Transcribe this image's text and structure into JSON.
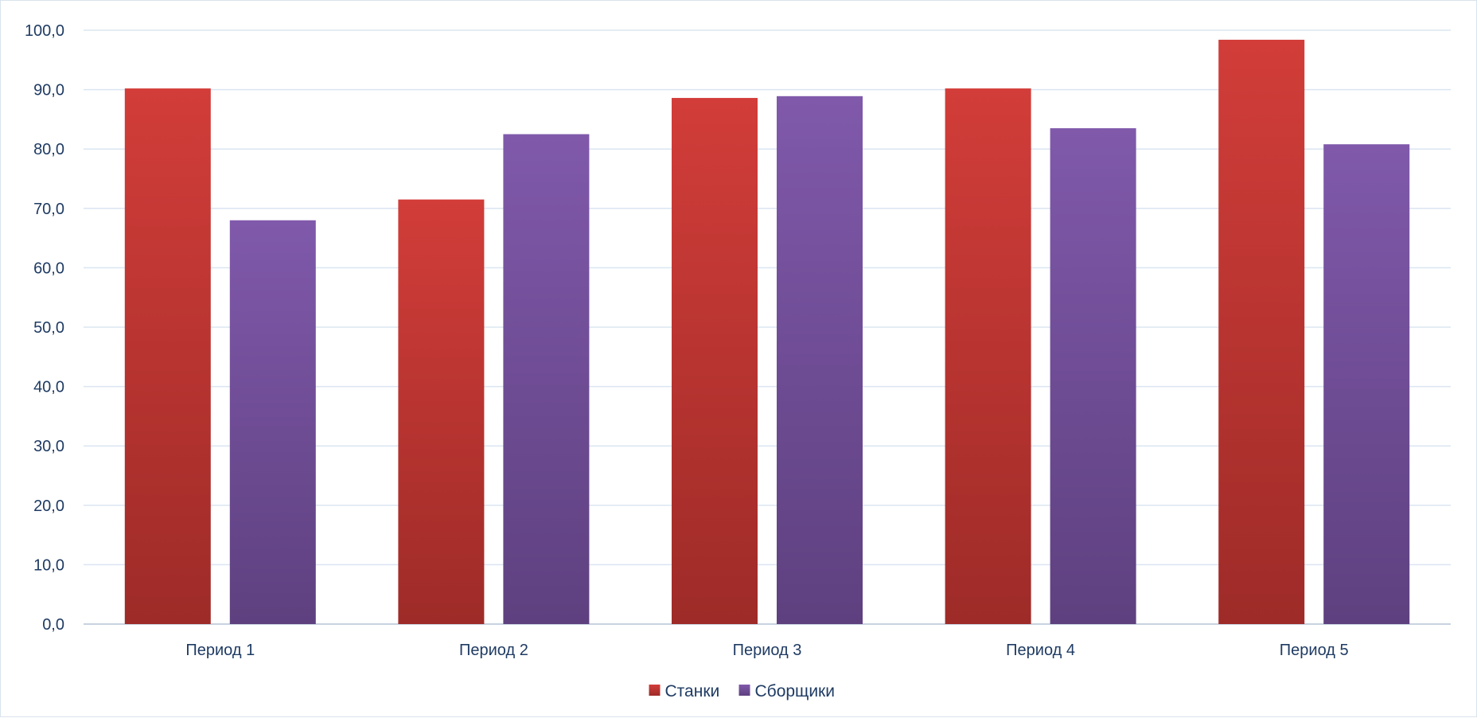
{
  "chart_data": {
    "type": "bar",
    "title": "",
    "xlabel": "",
    "ylabel": "",
    "categories": [
      "Период 1",
      "Период 2",
      "Период 3",
      "Период 4",
      "Период 5"
    ],
    "series": [
      {
        "name": "Станки",
        "values": [
          90.2,
          71.5,
          88.6,
          90.2,
          98.4
        ],
        "color": "#cc3a36"
      },
      {
        "name": "Сборщики",
        "values": [
          68.0,
          82.5,
          88.9,
          83.5,
          80.8
        ],
        "color": "#7e57a9"
      }
    ],
    "ylim": [
      0,
      100
    ],
    "yticks": [
      "0,0",
      "10,0",
      "20,0",
      "30,0",
      "40,0",
      "50,0",
      "60,0",
      "70,0",
      "80,0",
      "90,0",
      "100,0"
    ],
    "grid": true,
    "legend_position": "bottom"
  }
}
